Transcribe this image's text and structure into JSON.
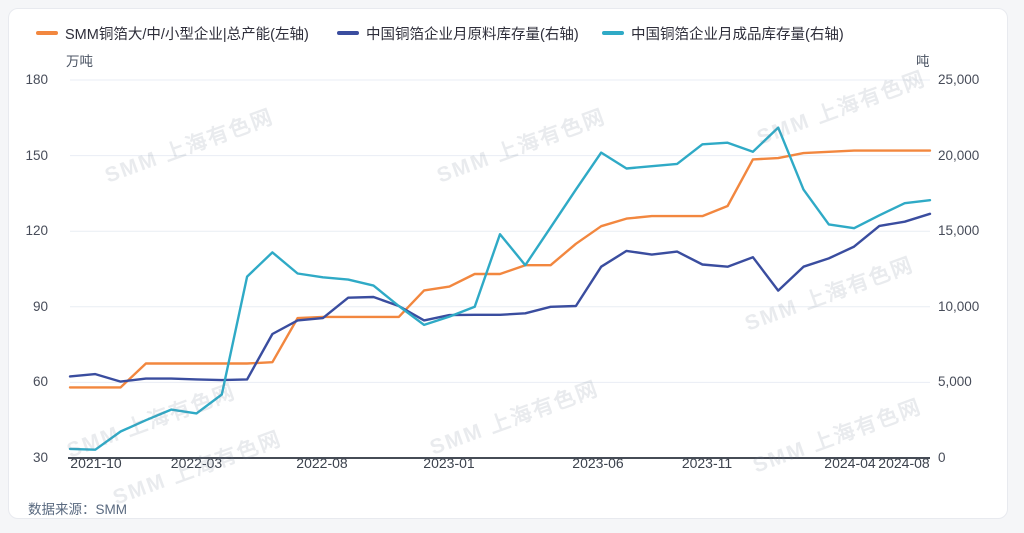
{
  "legend": {
    "items": [
      {
        "label": "SMM铜箔大/中/小型企业|总产能(左轴)",
        "color": "#F2873F"
      },
      {
        "label": "中国铜箔企业月原料库存量(右轴)",
        "color": "#3A4D9F"
      },
      {
        "label": "中国铜箔企业月成品库存量(右轴)",
        "color": "#2FAAC6"
      }
    ]
  },
  "axes": {
    "left_unit": "万吨",
    "right_unit": "吨",
    "left_labels": [
      "180",
      "150",
      "120",
      "90",
      "60",
      "30"
    ],
    "right_labels": [
      "25,000",
      "20,000",
      "15,000",
      "10,000",
      "5,000",
      "0"
    ],
    "x_labels": [
      "2021-10",
      "2022-03",
      "2022-08",
      "2023-01",
      "2023-06",
      "2023-11",
      "2024-04",
      "2024-08"
    ]
  },
  "source_label": "数据来源：SMM",
  "watermark_text": "SMM 上海有色网",
  "chart_data": {
    "type": "line",
    "title": "",
    "x": [
      "2021-10",
      "2021-11",
      "2021-12",
      "2022-01",
      "2022-02",
      "2022-03",
      "2022-04",
      "2022-05",
      "2022-06",
      "2022-07",
      "2022-08",
      "2022-09",
      "2022-10",
      "2022-11",
      "2022-12",
      "2023-01",
      "2023-02",
      "2023-03",
      "2023-04",
      "2023-05",
      "2023-06",
      "2023-07",
      "2023-08",
      "2023-09",
      "2023-10",
      "2023-11",
      "2023-12",
      "2024-01",
      "2024-02",
      "2024-03",
      "2024-04",
      "2024-05",
      "2024-06",
      "2024-07",
      "2024-08"
    ],
    "left_axis": {
      "name": "万吨",
      "min": 30,
      "max": 180,
      "ticks": [
        180,
        150,
        120,
        90,
        60,
        30
      ]
    },
    "right_axis": {
      "name": "吨",
      "min": 0,
      "max": 25000,
      "ticks": [
        25000,
        20000,
        15000,
        10000,
        5000,
        0
      ]
    },
    "grid": true,
    "legend_position": "top",
    "series": [
      {
        "name": "SMM铜箔大/中/小型企业|总产能(左轴)",
        "axis": "left",
        "color": "#F2873F",
        "unit": "万吨",
        "values": [
          58,
          58,
          58,
          67.5,
          67.5,
          67.5,
          67.5,
          67.5,
          68,
          85.5,
          86,
          86,
          86,
          86,
          96.5,
          98,
          103,
          103,
          106.5,
          106.5,
          115,
          122,
          125,
          126,
          126,
          126,
          130,
          148.5,
          149,
          151,
          151.5,
          152,
          152,
          152,
          152
        ]
      },
      {
        "name": "中国铜箔企业月原料库存量(右轴)",
        "axis": "right",
        "color": "#3A4D9F",
        "unit": "吨",
        "values": [
          5400,
          5550,
          5050,
          5250,
          5250,
          5200,
          5150,
          5200,
          8200,
          9100,
          9250,
          10600,
          10650,
          10050,
          9100,
          9450,
          9470,
          9470,
          9570,
          10000,
          10050,
          12650,
          13700,
          13450,
          13650,
          12800,
          12650,
          13280,
          11070,
          12650,
          13200,
          13980,
          15350,
          15630,
          16150
        ]
      },
      {
        "name": "中国铜箔企业月成品库存量(右轴)",
        "axis": "right",
        "color": "#2FAAC6",
        "unit": "吨",
        "values": [
          600,
          550,
          1750,
          2500,
          3200,
          2950,
          4200,
          12000,
          13600,
          12200,
          11950,
          11800,
          11400,
          10050,
          8800,
          9350,
          10000,
          14800,
          12750,
          15250,
          17750,
          20200,
          19150,
          19300,
          19450,
          20750,
          20850,
          20250,
          21850,
          17750,
          15450,
          15200,
          16050,
          16850,
          17050
        ]
      }
    ]
  }
}
